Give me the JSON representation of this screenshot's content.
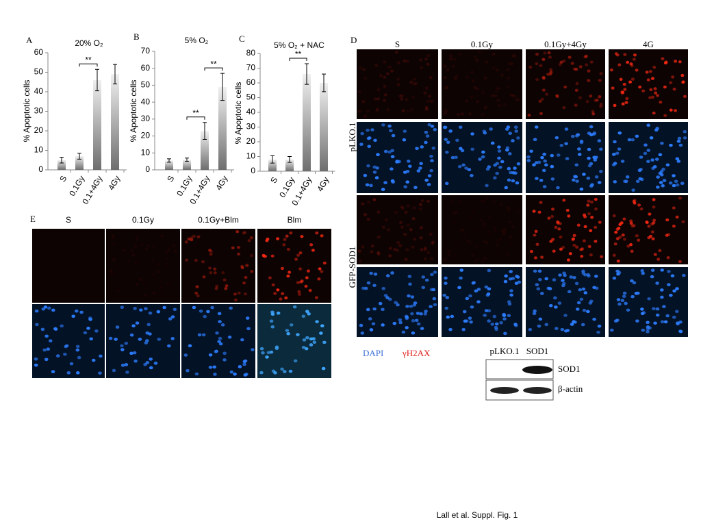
{
  "chart_data": [
    {
      "type": "bar",
      "panel_label": "A",
      "title": "20% O₂",
      "y_label": "% Apoptotic cells",
      "categories": [
        "S",
        "0.1Gy",
        "0.1+4Gy",
        "4Gy"
      ],
      "values": [
        5,
        7,
        46,
        49
      ],
      "errors": [
        1.5,
        1.5,
        5.5,
        5
      ],
      "color": "#6e6e6e",
      "ylim": [
        0,
        60
      ],
      "yticks": [
        0,
        10,
        20,
        30,
        40,
        50,
        60
      ],
      "annotations": [
        "**"
      ]
    },
    {
      "type": "bar",
      "panel_label": "B",
      "title": "5% O₂",
      "y_label": "% Apoptotic cells",
      "categories": [
        "S",
        "0.1Gy",
        "0.1+4Gy",
        "4Gy"
      ],
      "values": [
        5.5,
        6,
        23,
        49
      ],
      "errors": [
        1,
        1,
        5,
        8
      ],
      "color": "#6e6e6e",
      "ylim": [
        0,
        70
      ],
      "yticks": [
        0,
        10,
        20,
        30,
        40,
        50,
        60,
        70
      ],
      "annotations": [
        "**",
        "**"
      ]
    },
    {
      "type": "bar",
      "panel_label": "C",
      "title": "5% O₂ + NAC",
      "y_label": "% Apoptotic cells",
      "categories": [
        "S",
        "0.1Gy",
        "0.1+4Gy",
        "4Gy"
      ],
      "values": [
        8,
        8,
        66,
        60
      ],
      "errors": [
        2.5,
        2,
        7,
        6
      ],
      "color": "#6e6e6e",
      "ylim": [
        0,
        80
      ],
      "yticks": [
        0,
        10,
        20,
        30,
        40,
        50,
        60,
        70,
        80
      ],
      "annotations": [
        "**"
      ]
    }
  ],
  "panel_d": {
    "label": "D",
    "columns": [
      "S",
      "0.1Gy",
      "0.1Gy+4Gy",
      "4G"
    ],
    "rows": [
      "pLKO.1",
      "GFP-SOD1"
    ],
    "legend": [
      "DAPI",
      "γH2AX"
    ],
    "blot": {
      "columns": [
        "pLKO.1",
        "SOD1"
      ],
      "rows": [
        "SOD1",
        "β-actin"
      ]
    }
  },
  "panel_e": {
    "label": "E",
    "columns": [
      "S",
      "0.1Gy",
      "0.1Gy+Blm",
      "Blm"
    ]
  },
  "caption": "Lall et al. Suppl. Fig. 1"
}
